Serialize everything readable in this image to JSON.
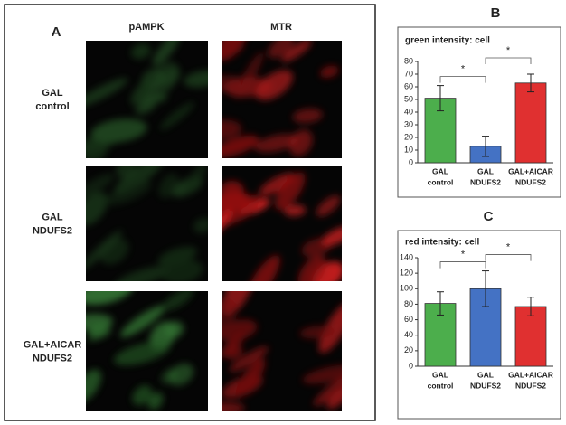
{
  "panel_a": {
    "label": "A",
    "columns": [
      "pAMPK",
      "MTR"
    ],
    "rows": [
      [
        "GAL",
        "control"
      ],
      [
        "GAL",
        "NDUFS2"
      ],
      [
        "GAL+AICAR",
        "NDUFS2"
      ]
    ]
  },
  "chart_data": [
    {
      "type": "bar",
      "panel_label": "B",
      "title": "green intensity: cell",
      "categories": [
        [
          "GAL",
          "control"
        ],
        [
          "GAL",
          "NDUFS2"
        ],
        [
          "GAL+AICAR",
          "NDUFS2"
        ]
      ],
      "values": [
        51,
        13,
        63
      ],
      "errors": [
        10,
        8,
        7
      ],
      "colors": [
        "#4cae4c",
        "#4472c4",
        "#e03030"
      ],
      "ylim": [
        0,
        80
      ],
      "yticks": [
        0,
        10,
        20,
        30,
        40,
        50,
        60,
        70,
        80
      ],
      "significance": [
        {
          "between": [
            0,
            1
          ],
          "label": "*"
        },
        {
          "between": [
            1,
            2
          ],
          "label": "*"
        }
      ]
    },
    {
      "type": "bar",
      "panel_label": "C",
      "title": "red intensity: cell",
      "categories": [
        [
          "GAL",
          "control"
        ],
        [
          "GAL",
          "NDUFS2"
        ],
        [
          "GAL+AICAR",
          "NDUFS2"
        ]
      ],
      "values": [
        81,
        100,
        77
      ],
      "errors": [
        15,
        23,
        12
      ],
      "colors": [
        "#4cae4c",
        "#4472c4",
        "#e03030"
      ],
      "ylim": [
        0,
        140
      ],
      "yticks": [
        0,
        20,
        40,
        60,
        80,
        100,
        120,
        140
      ],
      "significance": [
        {
          "between": [
            0,
            1
          ],
          "label": "*"
        },
        {
          "between": [
            1,
            2
          ],
          "label": "*"
        }
      ]
    }
  ]
}
